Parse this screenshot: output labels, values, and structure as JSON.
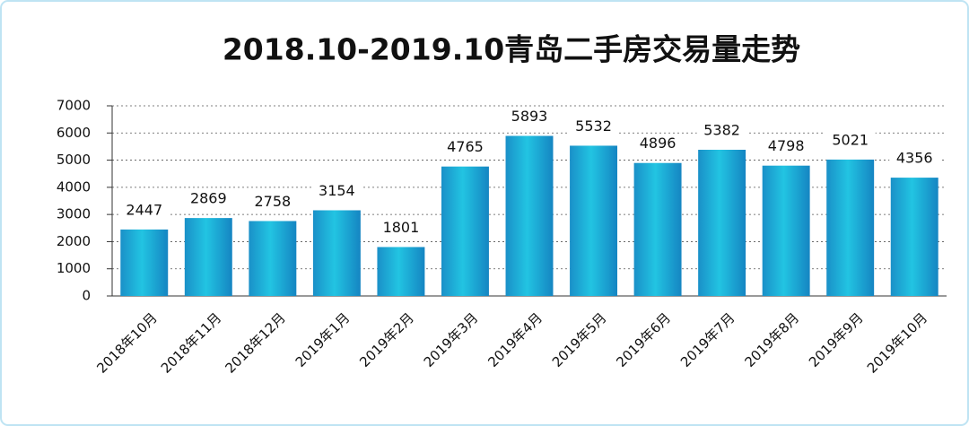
{
  "chart_data": {
    "type": "bar",
    "title": "2018.10-2019.10青岛二手房交易量走势",
    "categories": [
      "2018年10月",
      "2018年11月",
      "2018年12月",
      "2019年1月",
      "2019年2月",
      "2019年3月",
      "2019年4月",
      "2019年5月",
      "2019年6月",
      "2019年7月",
      "2019年8月",
      "2019年9月",
      "2019年10月"
    ],
    "values": [
      2447,
      2869,
      2758,
      3154,
      1801,
      4765,
      5893,
      5532,
      4896,
      5382,
      4798,
      5021,
      4356
    ],
    "color": "#22c4e2",
    "ylim": [
      0,
      7000
    ],
    "yticks": [
      0,
      1000,
      2000,
      3000,
      4000,
      5000,
      6000,
      7000
    ],
    "grid": true
  }
}
